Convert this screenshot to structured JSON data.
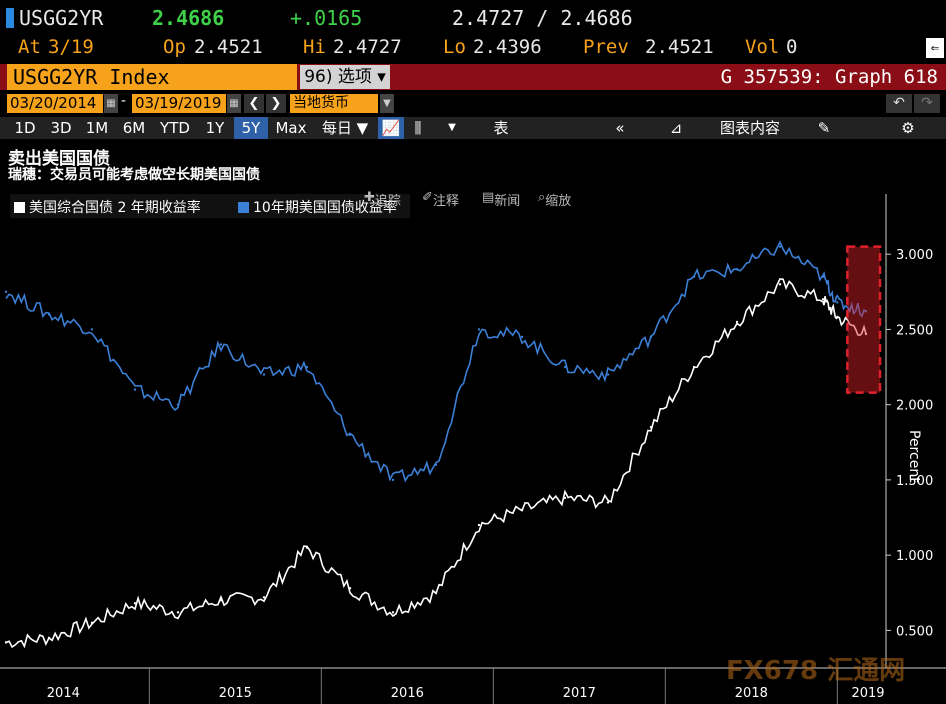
{
  "quote": {
    "ticker": "USGG2YR",
    "last": "2.4686",
    "change": "+.0165",
    "bid_ask": "2.4727 / 2.4686",
    "at_label": "At",
    "at_value": "3/19",
    "op_label": "Op",
    "op_value": "2.4521",
    "hi_label": "Hi",
    "hi_value": "2.4727",
    "lo_label": "Lo",
    "lo_value": "2.4396",
    "prev_label": "Prev",
    "prev_value": "2.4521",
    "vol_label": "Vol",
    "vol_value": "0"
  },
  "titlebar": {
    "security": "USGG2YR Index",
    "options_label": "96) 选项 ▾",
    "graph_id": "G 357539: Graph 618"
  },
  "dates": {
    "start": "03/20/2014",
    "separator": "-",
    "end": "03/19/2019",
    "currency": "当地货币"
  },
  "ranges": [
    "1D",
    "3D",
    "1M",
    "6M",
    "YTD",
    "1Y",
    "5Y",
    "Max"
  ],
  "active_range": "5Y",
  "toolbar": {
    "frequency": "每日 ▼",
    "table": "表",
    "chart_content": "图表内容"
  },
  "chart_tools": {
    "track": "追踪",
    "annotate": "注释",
    "news": "新闻",
    "zoom": "缩放"
  },
  "watermark": "FX678 汇通网",
  "colors": {
    "background": "#000000",
    "series_2y": "#ffffff",
    "series_10y": "#3b7fd6",
    "highlight": "#e0212b",
    "accent": "#f7a21b"
  },
  "chart_data": {
    "type": "line",
    "title": "卖出美国国债",
    "subtitle": "瑞穗：交易员可能考虑做空长期美国国债",
    "ylabel": "Percent",
    "ylim": [
      0.25,
      3.4
    ],
    "yticks": [
      "0.500",
      "1.000",
      "1.500",
      "2.000",
      "2.500",
      "3.000"
    ],
    "x_labels": [
      "2014",
      "2015",
      "2016",
      "2017",
      "2018",
      "2019"
    ],
    "x": [
      "2014-03",
      "2014-06",
      "2014-09",
      "2014-12",
      "2015-03",
      "2015-06",
      "2015-09",
      "2015-12",
      "2016-03",
      "2016-06",
      "2016-09",
      "2016-12",
      "2017-03",
      "2017-06",
      "2017-09",
      "2017-12",
      "2018-03",
      "2018-06",
      "2018-09",
      "2018-12",
      "2019-01",
      "2019-03"
    ],
    "series": [
      {
        "name": "美国综合国债 2 年期收益率",
        "values": [
          0.42,
          0.45,
          0.55,
          0.68,
          0.62,
          0.7,
          0.72,
          1.05,
          0.78,
          0.62,
          0.75,
          1.2,
          1.3,
          1.38,
          1.35,
          1.85,
          2.25,
          2.55,
          2.8,
          2.7,
          2.58,
          2.47
        ]
      },
      {
        "name": "10年期美国国债收益率",
        "values": [
          2.75,
          2.6,
          2.5,
          2.1,
          2.0,
          2.4,
          2.2,
          2.25,
          1.8,
          1.5,
          1.6,
          2.5,
          2.45,
          2.25,
          2.2,
          2.45,
          2.85,
          2.9,
          3.05,
          2.85,
          2.68,
          2.62
        ]
      }
    ],
    "grid": false,
    "legend": "top-left",
    "highlight_box": {
      "x_from": "2019-01",
      "x_to": "2019-03",
      "y_from": 2.08,
      "y_to": 3.05
    }
  }
}
